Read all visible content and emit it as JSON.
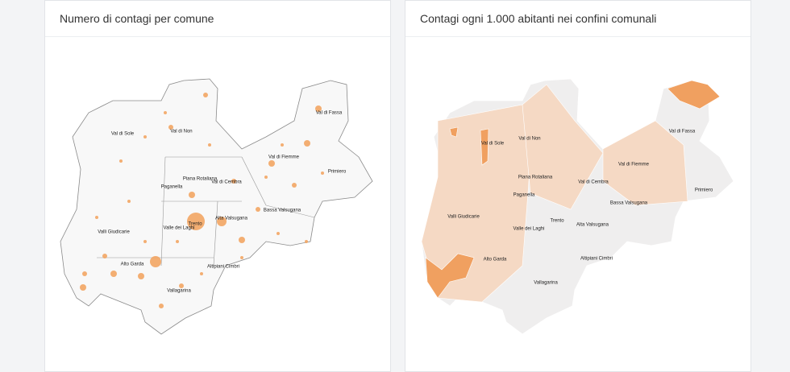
{
  "panels": [
    {
      "title": "Numero di contagi per comune",
      "labels": [
        "Val di Sole",
        "Val di Non",
        "Val di Fassa",
        "Val di Fiemme",
        "Primiero",
        "Piana Rotaliana",
        "Paganella",
        "Val di Cembra",
        "Valli Giudicarie",
        "Valle dei Laghi",
        "Trento",
        "Alta Valsugana",
        "Bassa Valsugana",
        "Alto Garda",
        "Altipiani Cimbri",
        "Vallagarina"
      ]
    },
    {
      "title": "Contagi ogni 1.000 abitanti nei confini comunali",
      "labels": [
        "Val di Sole",
        "Val di Non",
        "Val di Fassa",
        "Val di Fiemme",
        "Primiero",
        "Piana Rotaliana",
        "Paganella",
        "Val di Cembra",
        "Valli Giudicarie",
        "Valle dei Laghi",
        "Trento",
        "Alta Valsugana",
        "Bassa Valsugana",
        "Alto Garda",
        "Altipiani Cimbri",
        "Vallagarina"
      ]
    }
  ]
}
